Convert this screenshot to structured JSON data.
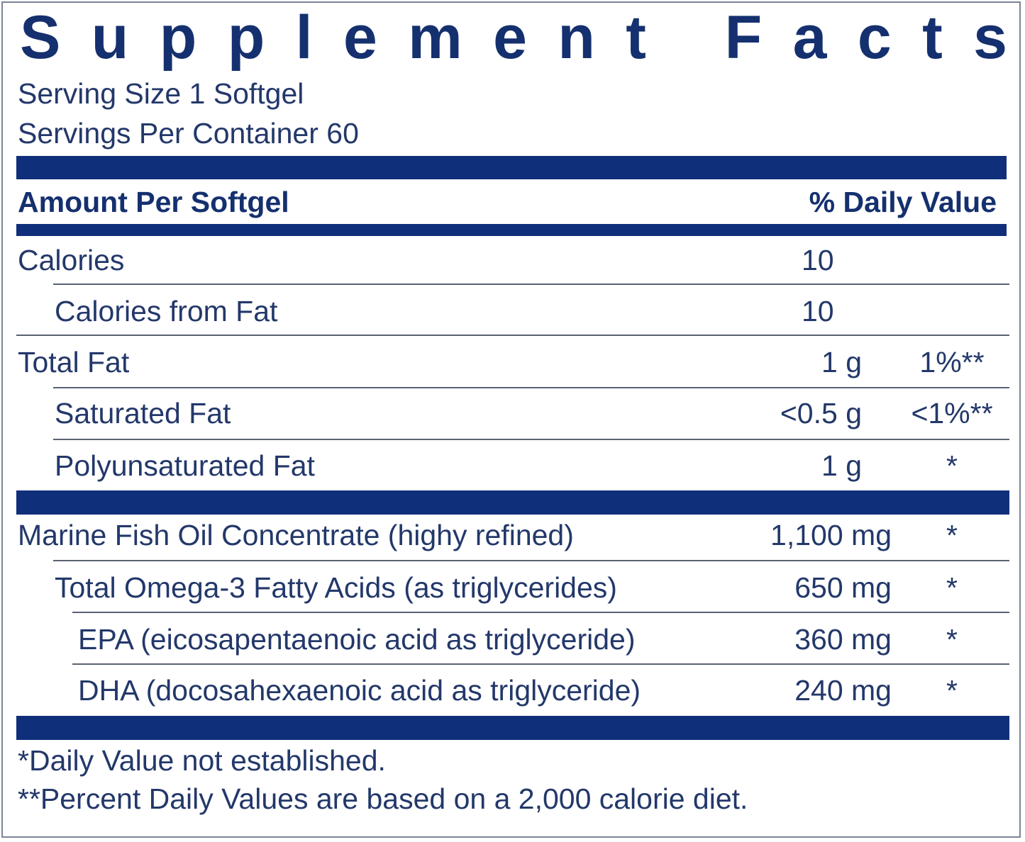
{
  "title": "Supplement Facts",
  "serving_size": "Serving Size 1 Softgel",
  "servings_per_container": "Servings Per Container 60",
  "header": {
    "amount": "Amount Per Softgel",
    "daily_value": "% Daily Value"
  },
  "rows": [
    {
      "name": "Calories",
      "amount": "10"
    },
    {
      "name": "Calories from Fat",
      "amount": "10"
    },
    {
      "name": "Total Fat",
      "amount": "1 g",
      "daily_value": "1%**"
    },
    {
      "name": "Saturated Fat",
      "amount": "<0.5 g",
      "daily_value": "<1%**"
    },
    {
      "name": "Polyunsaturated Fat",
      "amount": "1 g",
      "daily_value": "*"
    },
    {
      "name": "Marine Fish Oil Concentrate (highy refined)",
      "amount": "1,100 mg",
      "daily_value": "*"
    },
    {
      "name": "Total Omega-3 Fatty Acids (as triglycerides)",
      "amount": "650 mg",
      "daily_value": "*"
    },
    {
      "name": "EPA (eicosapentaenoic acid as triglyceride)",
      "amount": "360 mg",
      "daily_value": "*"
    },
    {
      "name": "DHA (docosahexaenoic acid as triglyceride)",
      "amount": "240 mg",
      "daily_value": "*"
    }
  ],
  "footnotes": [
    "*Daily Value not established.",
    "**Percent Daily Values are based on a 2,000 calorie diet."
  ]
}
